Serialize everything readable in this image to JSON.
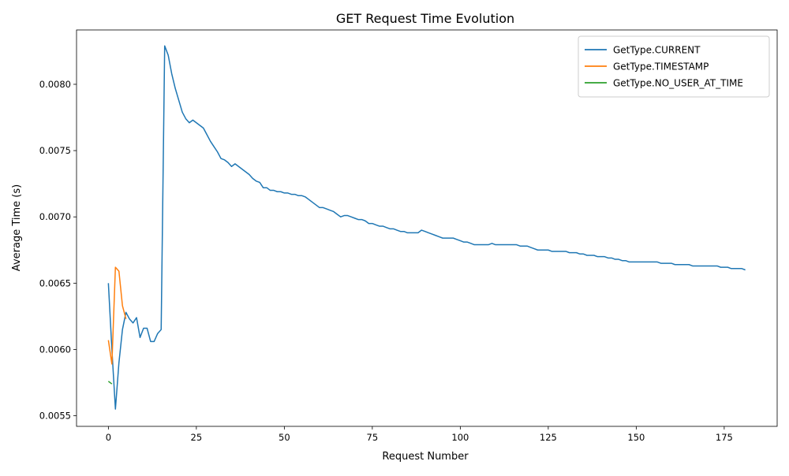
{
  "chart_data": {
    "type": "line",
    "title": "GET Request Time Evolution",
    "xlabel": "Request Number",
    "ylabel": "Average Time (s)",
    "xlim": [
      -9.05,
      190.05
    ],
    "ylim": [
      0.00542,
      0.00841
    ],
    "xticks": [
      0,
      25,
      50,
      75,
      100,
      125,
      150,
      175
    ],
    "yticks": [
      0.0055,
      0.006,
      0.0065,
      0.007,
      0.0075,
      0.008
    ],
    "grid": false,
    "legend_position": "top-right",
    "series": [
      {
        "name": "GetType.CURRENT",
        "color": "#1f77b4",
        "x": [
          0,
          1,
          2,
          3,
          4,
          5,
          6,
          7,
          8,
          9,
          10,
          11,
          12,
          13,
          14,
          15,
          16,
          17,
          18,
          19,
          20,
          21,
          22,
          23,
          24,
          25,
          26,
          27,
          28,
          29,
          30,
          31,
          32,
          33,
          34,
          35,
          36,
          37,
          38,
          39,
          40,
          41,
          42,
          43,
          44,
          45,
          46,
          47,
          48,
          49,
          50,
          51,
          52,
          53,
          54,
          55,
          56,
          57,
          58,
          59,
          60,
          61,
          62,
          63,
          64,
          65,
          66,
          67,
          68,
          69,
          70,
          71,
          72,
          73,
          74,
          75,
          76,
          77,
          78,
          79,
          80,
          81,
          82,
          83,
          84,
          85,
          86,
          87,
          88,
          89,
          90,
          91,
          92,
          93,
          94,
          95,
          96,
          97,
          98,
          99,
          100,
          101,
          102,
          103,
          104,
          105,
          106,
          107,
          108,
          109,
          110,
          111,
          112,
          113,
          114,
          115,
          116,
          117,
          118,
          119,
          120,
          121,
          122,
          123,
          124,
          125,
          126,
          127,
          128,
          129,
          130,
          131,
          132,
          133,
          134,
          135,
          136,
          137,
          138,
          139,
          140,
          141,
          142,
          143,
          144,
          145,
          146,
          147,
          148,
          149,
          150,
          151,
          152,
          153,
          154,
          155,
          156,
          157,
          158,
          159,
          160,
          161,
          162,
          163,
          164,
          165,
          166,
          167,
          168,
          169,
          170,
          171,
          172,
          173,
          174,
          175,
          176,
          177,
          178,
          179,
          180,
          181
        ],
        "y": [
          0.0065,
          0.006,
          0.00555,
          0.0059,
          0.00615,
          0.00628,
          0.00623,
          0.0062,
          0.00624,
          0.00609,
          0.00616,
          0.00616,
          0.00606,
          0.00606,
          0.00612,
          0.00615,
          0.00829,
          0.00822,
          0.00808,
          0.00797,
          0.00788,
          0.00779,
          0.00774,
          0.00771,
          0.00773,
          0.00771,
          0.00769,
          0.00767,
          0.00762,
          0.00757,
          0.00753,
          0.00749,
          0.00744,
          0.00743,
          0.00741,
          0.00738,
          0.0074,
          0.00738,
          0.00736,
          0.00734,
          0.00732,
          0.00729,
          0.00727,
          0.00726,
          0.00722,
          0.00722,
          0.0072,
          0.0072,
          0.00719,
          0.00719,
          0.00718,
          0.00718,
          0.00717,
          0.00717,
          0.00716,
          0.00716,
          0.00715,
          0.00713,
          0.00711,
          0.00709,
          0.00707,
          0.00707,
          0.00706,
          0.00705,
          0.00704,
          0.00702,
          0.007,
          0.00701,
          0.00701,
          0.007,
          0.00699,
          0.00698,
          0.00698,
          0.00697,
          0.00695,
          0.00695,
          0.00694,
          0.00693,
          0.00693,
          0.00692,
          0.00691,
          0.00691,
          0.0069,
          0.00689,
          0.00689,
          0.00688,
          0.00688,
          0.00688,
          0.00688,
          0.0069,
          0.00689,
          0.00688,
          0.00687,
          0.00686,
          0.00685,
          0.00684,
          0.00684,
          0.00684,
          0.00684,
          0.00683,
          0.00682,
          0.00681,
          0.00681,
          0.0068,
          0.00679,
          0.00679,
          0.00679,
          0.00679,
          0.00679,
          0.0068,
          0.00679,
          0.00679,
          0.00679,
          0.00679,
          0.00679,
          0.00679,
          0.00679,
          0.00678,
          0.00678,
          0.00678,
          0.00677,
          0.00676,
          0.00675,
          0.00675,
          0.00675,
          0.00675,
          0.00674,
          0.00674,
          0.00674,
          0.00674,
          0.00674,
          0.00673,
          0.00673,
          0.00673,
          0.00672,
          0.00672,
          0.00671,
          0.00671,
          0.00671,
          0.0067,
          0.0067,
          0.0067,
          0.00669,
          0.00669,
          0.00668,
          0.00668,
          0.00667,
          0.00667,
          0.00666,
          0.00666,
          0.00666,
          0.00666,
          0.00666,
          0.00666,
          0.00666,
          0.00666,
          0.00666,
          0.00665,
          0.00665,
          0.00665,
          0.00665,
          0.00664,
          0.00664,
          0.00664,
          0.00664,
          0.00664,
          0.00663,
          0.00663,
          0.00663,
          0.00663,
          0.00663,
          0.00663,
          0.00663,
          0.00663,
          0.00662,
          0.00662,
          0.00662,
          0.00661,
          0.00661,
          0.00661,
          0.00661,
          0.0066
        ]
      },
      {
        "name": "GetType.TIMESTAMP",
        "color": "#ff7f0e",
        "x": [
          0,
          1,
          2,
          3,
          4,
          5
        ],
        "y": [
          0.00607,
          0.00589,
          0.00662,
          0.00659,
          0.00633,
          0.00623
        ]
      },
      {
        "name": "GetType.NO_USER_AT_TIME",
        "color": "#2ca02c",
        "x": [
          0,
          1
        ],
        "y": [
          0.00576,
          0.00574
        ]
      }
    ]
  }
}
